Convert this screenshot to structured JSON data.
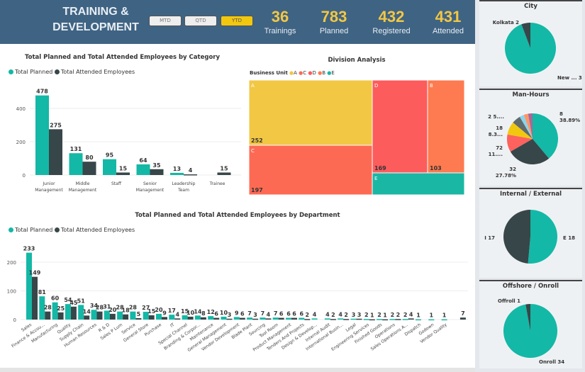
{
  "header": {
    "title_line1": "TRAINING &",
    "title_line2": "DEVELOPMENT",
    "filters": [
      "MTD",
      "QTD",
      "YTD"
    ],
    "active_filter": "YTD",
    "kpis": [
      {
        "value": "36",
        "label": "Trainings"
      },
      {
        "value": "783",
        "label": "Planned"
      },
      {
        "value": "432",
        "label": "Registered"
      },
      {
        "value": "431",
        "label": "Attended"
      }
    ]
  },
  "colors": {
    "planned": "#14b8a6",
    "attended": "#374649",
    "header": "#3f6383",
    "kpi": "#f2c744"
  },
  "chart_data": [
    {
      "type": "bar",
      "title": "Total Planned and Total Attended Employees by Category",
      "legend": "top-left",
      "ylim": [
        0,
        500
      ],
      "yticks": [
        0,
        200,
        400
      ],
      "categories": [
        "Junior Management",
        "Middle Management",
        "Staff",
        "Senior Management",
        "Leadership Team",
        "Trainee"
      ],
      "series": [
        {
          "name": "Total Planned",
          "values": [
            478,
            131,
            95,
            64,
            13,
            null
          ]
        },
        {
          "name": "Total Attended Employees",
          "values": [
            275,
            80,
            15,
            35,
            4,
            15
          ]
        }
      ]
    },
    {
      "type": "treemap",
      "title": "Division Analysis",
      "legend_title": "Business Unit",
      "legend": [
        "A",
        "C",
        "D",
        "B",
        "E"
      ],
      "items": [
        {
          "label": "A",
          "value": 252,
          "color": "#f2c744"
        },
        {
          "label": "C",
          "value": 197,
          "color": "#fd6a54"
        },
        {
          "label": "D",
          "value": 169,
          "color": "#fd5c5c"
        },
        {
          "label": "B",
          "value": 103,
          "color": "#fe7a50"
        },
        {
          "label": "E",
          "value": null,
          "color": "#1ab7a4"
        }
      ]
    },
    {
      "type": "bar",
      "title": "Total Planned and Total Attended Employees by Department",
      "legend": "top-left",
      "ylim": [
        0,
        250
      ],
      "yticks": [
        0,
        100,
        200
      ],
      "categories": [
        "Sales",
        "Finance & Accou...",
        "Manufacturing",
        "Quality",
        "Supply Chain",
        "Human Resources",
        "R & D",
        "Sales P Lum",
        "Service",
        "General Store",
        "Purchase",
        "IT",
        "Special Channel",
        "Branding & Corpor...",
        "Maintenance",
        "General Management",
        "Vendor Development",
        "Blade Plant",
        "Sourcing",
        "Tool Room",
        "Product Management",
        "Tenders And Projects",
        "Design & Develop...",
        "Internal Audit",
        "International Busin...",
        "Legal",
        "Engineering Services",
        "Finished Goods",
        "Operations",
        "Sales Operations A...",
        "Dispatch",
        "Godown",
        "Vendor Quality",
        ""
      ],
      "series": [
        {
          "name": "Total Planned",
          "values": [
            233,
            81,
            60,
            54,
            51,
            34,
            31,
            28,
            28,
            27,
            20,
            17,
            15,
            14,
            12,
            10,
            9,
            7,
            7,
            7,
            6,
            6,
            4,
            4,
            4,
            3,
            2,
            2,
            2,
            2,
            1,
            1,
            1,
            null
          ]
        },
        {
          "name": "Total Attended Employees",
          "values": [
            149,
            28,
            25,
            45,
            14,
            28,
            20,
            18,
            5,
            15,
            9,
            4,
            10,
            8,
            6,
            3,
            6,
            3,
            4,
            6,
            6,
            2,
            null,
            2,
            2,
            3,
            1,
            1,
            2,
            4,
            null,
            null,
            null,
            7
          ]
        }
      ]
    },
    {
      "type": "pie",
      "title": "City",
      "slices": [
        {
          "label": "New ... 33",
          "value": 33,
          "color": "#14b8a6"
        },
        {
          "label": "Kolkata 2",
          "value": 2,
          "color": "#374649"
        }
      ]
    },
    {
      "type": "pie",
      "title": "Man-Hours",
      "slices": [
        {
          "label": "8 38.89%",
          "value": 38.89,
          "color": "#14b8a6"
        },
        {
          "label": "32 27.78%",
          "value": 27.78,
          "color": "#374649"
        },
        {
          "label": "72 11....",
          "value": 11.11,
          "color": "#fd625e"
        },
        {
          "label": "18 8.3...",
          "value": 8.33,
          "color": "#f2c80f"
        },
        {
          "label": "2 5....",
          "value": 5.56,
          "color": "#5f6b6d"
        },
        {
          "label": "",
          "value": 2.78,
          "color": "#8ad4eb"
        },
        {
          "label": "",
          "value": 2.78,
          "color": "#fe9666"
        },
        {
          "label": "",
          "value": 2.78,
          "color": "#a66999"
        }
      ]
    },
    {
      "type": "pie",
      "title": "Internal / External",
      "slices": [
        {
          "label": "E 18",
          "value": 18,
          "color": "#14b8a6"
        },
        {
          "label": "I 17",
          "value": 17,
          "color": "#374649"
        }
      ]
    },
    {
      "type": "pie",
      "title": "Offshore / Onroll",
      "slices": [
        {
          "label": "Onroll 34",
          "value": 34,
          "color": "#14b8a6"
        },
        {
          "label": "Offroll 1",
          "value": 1,
          "color": "#374649"
        }
      ]
    }
  ]
}
